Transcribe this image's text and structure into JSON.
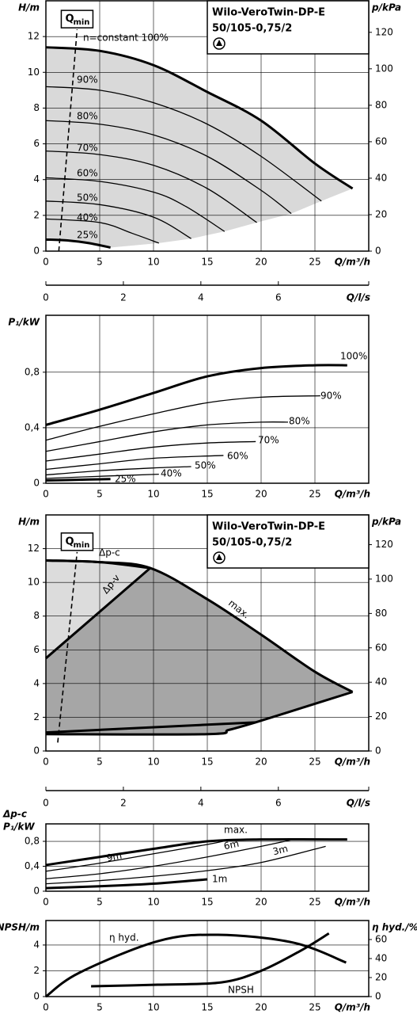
{
  "chart_data": [
    {
      "type": "line",
      "title": "Wilo-VeroTwin-DP-E",
      "subtitle": "50/105-0,75/2",
      "xlabel": "Q/m³/h",
      "ylabel": "H/m",
      "y2label": "p/kPa",
      "x2label": "Q/l/s",
      "xlim": [
        0,
        30
      ],
      "xticks": [
        0,
        5,
        10,
        15,
        20,
        25
      ],
      "ylim": [
        0,
        14
      ],
      "yticks": [
        0,
        2,
        4,
        6,
        8,
        10,
        12
      ],
      "y2lim": [
        0,
        137.3
      ],
      "y2ticks": [
        0,
        20,
        40,
        60,
        80,
        100,
        120
      ],
      "x2lim": [
        0,
        8.333
      ],
      "x2ticks": [
        0,
        2,
        4,
        6
      ],
      "grid": true,
      "fill": "#d9d9d9",
      "qmin_label": "Q",
      "qmin_sub": "min",
      "qmin_line": {
        "x": [
          1.2,
          2.9
        ],
        "values": [
          0,
          12.4
        ]
      },
      "series": [
        {
          "name": "n=constant 100%",
          "color": "#000000",
          "linewidth": 3,
          "x": [
            0,
            5,
            10,
            15,
            20,
            25,
            28.5
          ],
          "values": [
            11.4,
            11.2,
            10.4,
            8.9,
            7.3,
            4.9,
            3.5
          ]
        },
        {
          "name": "90%",
          "color": "#000000",
          "linewidth": 1.3,
          "x": [
            0,
            5,
            10,
            15,
            20,
            25.6
          ],
          "values": [
            9.2,
            9.0,
            8.3,
            7.1,
            5.3,
            2.8
          ]
        },
        {
          "name": "80%",
          "color": "#000000",
          "linewidth": 1.3,
          "x": [
            0,
            5,
            10,
            15,
            20,
            22.8
          ],
          "values": [
            7.3,
            7.1,
            6.5,
            5.3,
            3.4,
            2.1
          ]
        },
        {
          "name": "70%",
          "color": "#000000",
          "linewidth": 1.3,
          "x": [
            0,
            5,
            10,
            15,
            19.6
          ],
          "values": [
            5.6,
            5.4,
            4.8,
            3.5,
            1.6
          ]
        },
        {
          "name": "60%",
          "color": "#000000",
          "linewidth": 1.3,
          "x": [
            0,
            5,
            10,
            13,
            16.6
          ],
          "values": [
            4.1,
            3.9,
            3.3,
            2.5,
            1.1
          ]
        },
        {
          "name": "50%",
          "color": "#000000",
          "linewidth": 1.3,
          "x": [
            0,
            5,
            10,
            13.5
          ],
          "values": [
            2.8,
            2.6,
            1.9,
            0.7
          ]
        },
        {
          "name": "40%",
          "color": "#000000",
          "linewidth": 1.3,
          "x": [
            0,
            5,
            8,
            10.5
          ],
          "values": [
            1.8,
            1.6,
            1.0,
            0.45
          ]
        },
        {
          "name": "25%",
          "color": "#000000",
          "linewidth": 3,
          "x": [
            0,
            2,
            4,
            6
          ],
          "values": [
            0.65,
            0.6,
            0.45,
            0.2
          ]
        }
      ]
    },
    {
      "type": "line",
      "xlabel": "Q/m³/h",
      "ylabel": "P₁/kW",
      "xlim": [
        0,
        30
      ],
      "xticks": [
        0,
        5,
        10,
        15,
        20,
        25
      ],
      "ylim": [
        0,
        1.21
      ],
      "yticks": [
        0,
        {
          "value": 0.4,
          "label": "0,4"
        },
        {
          "value": 0.8,
          "label": "0,8"
        }
      ],
      "grid": true,
      "series": [
        {
          "name": "100%",
          "color": "#000000",
          "linewidth": 3,
          "x": [
            0,
            5,
            10,
            15,
            20,
            25,
            28
          ],
          "values": [
            0.42,
            0.53,
            0.65,
            0.77,
            0.83,
            0.85,
            0.85
          ]
        },
        {
          "name": "90%",
          "color": "#000000",
          "linewidth": 1.3,
          "x": [
            0,
            5,
            10,
            15,
            20,
            25.5
          ],
          "values": [
            0.31,
            0.41,
            0.5,
            0.58,
            0.62,
            0.63
          ]
        },
        {
          "name": "80%",
          "color": "#000000",
          "linewidth": 1.3,
          "x": [
            0,
            5,
            10,
            15,
            20,
            22.5
          ],
          "values": [
            0.23,
            0.3,
            0.37,
            0.42,
            0.44,
            0.44
          ]
        },
        {
          "name": "70%",
          "color": "#000000",
          "linewidth": 1.3,
          "x": [
            0,
            5,
            10,
            15,
            19.5
          ],
          "values": [
            0.16,
            0.21,
            0.26,
            0.29,
            0.3
          ]
        },
        {
          "name": "60%",
          "color": "#000000",
          "linewidth": 1.3,
          "x": [
            0,
            5,
            10,
            16.5
          ],
          "values": [
            0.1,
            0.14,
            0.18,
            0.2
          ]
        },
        {
          "name": "50%",
          "color": "#000000",
          "linewidth": 1.3,
          "x": [
            0,
            5,
            10,
            13.5
          ],
          "values": [
            0.06,
            0.09,
            0.11,
            0.12
          ]
        },
        {
          "name": "40%",
          "color": "#000000",
          "linewidth": 1.3,
          "x": [
            0,
            5,
            10.5
          ],
          "values": [
            0.035,
            0.05,
            0.065
          ]
        },
        {
          "name": "25%",
          "color": "#000000",
          "linewidth": 3,
          "x": [
            0,
            3,
            6
          ],
          "values": [
            0.02,
            0.025,
            0.03
          ]
        }
      ]
    },
    {
      "type": "line",
      "title": "Wilo-VeroTwin-DP-E",
      "subtitle": "50/105-0,75/2",
      "xlabel": "Q/m³/h",
      "ylabel": "H/m",
      "y2label": "p/kPa",
      "x2label": "Q/l/s",
      "xlim": [
        0,
        30
      ],
      "xticks": [
        0,
        5,
        10,
        15,
        20,
        25
      ],
      "ylim": [
        0,
        14
      ],
      "yticks": [
        0,
        2,
        4,
        6,
        8,
        10,
        12
      ],
      "y2lim": [
        0,
        137.3
      ],
      "y2ticks": [
        0,
        20,
        40,
        60,
        80,
        100,
        120
      ],
      "x2lim": [
        0,
        8.333
      ],
      "x2ticks": [
        0,
        2,
        4,
        6
      ],
      "grid": true,
      "fill": "#dcdcdc",
      "fill2": "#a6a6a6",
      "qmin_label": "Q",
      "qmin_sub": "min",
      "qmin_line": {
        "x": [
          1.1,
          2.9
        ],
        "values": [
          0.5,
          11.8
        ]
      },
      "series": [
        {
          "name": "max.",
          "color": "#000000",
          "linewidth": 3,
          "x": [
            0,
            5,
            9.7,
            15,
            20,
            25,
            28.5
          ],
          "values": [
            11.3,
            11.2,
            10.85,
            9.0,
            6.9,
            4.7,
            3.5
          ]
        },
        {
          "name": "Δp-c",
          "color": "#000000",
          "linewidth": 3,
          "x": [
            0,
            5,
            9.7
          ],
          "values": [
            11.3,
            11.2,
            10.85
          ]
        },
        {
          "name": "Δp-v",
          "color": "#000000",
          "linewidth": 3,
          "x": [
            0,
            9.7
          ],
          "values": [
            5.5,
            10.85
          ]
        },
        {
          "color": "#000000",
          "linewidth": 3,
          "x": [
            0,
            15,
            17,
            19.5,
            24,
            28.5
          ],
          "values": [
            1.0,
            1.0,
            1.25,
            1.7,
            2.6,
            3.5
          ]
        },
        {
          "color": "#000000",
          "linewidth": 3,
          "x": [
            0,
            19.5
          ],
          "values": [
            1.1,
            1.7
          ]
        }
      ]
    },
    {
      "type": "line",
      "xlabel": "Q/m³/h",
      "ylabel_top": "Δp-c",
      "ylabel": "P₁/kW",
      "xlim": [
        0,
        30
      ],
      "xticks": [
        0,
        5,
        10,
        15,
        20,
        25
      ],
      "ylim": [
        0,
        1.08
      ],
      "yticks": [
        0,
        {
          "value": 0.4,
          "label": "0,4"
        },
        {
          "value": 0.8,
          "label": "0,8"
        }
      ],
      "grid": true,
      "series": [
        {
          "name": "max.",
          "color": "#000000",
          "linewidth": 3,
          "x": [
            0,
            5,
            10,
            15,
            20,
            28
          ],
          "values": [
            0.42,
            0.55,
            0.68,
            0.8,
            0.83,
            0.83
          ]
        },
        {
          "name": "9m",
          "color": "#000000",
          "linewidth": 1.3,
          "x": [
            0,
            5,
            10,
            15,
            17
          ],
          "values": [
            0.32,
            0.45,
            0.6,
            0.75,
            0.82
          ]
        },
        {
          "name": "6m",
          "color": "#000000",
          "linewidth": 1.3,
          "x": [
            0,
            5,
            10,
            15,
            20,
            23
          ],
          "values": [
            0.2,
            0.28,
            0.4,
            0.55,
            0.72,
            0.83
          ]
        },
        {
          "name": "3m",
          "color": "#000000",
          "linewidth": 1.3,
          "x": [
            0,
            5,
            10,
            15,
            20,
            26
          ],
          "values": [
            0.12,
            0.17,
            0.24,
            0.33,
            0.46,
            0.72
          ]
        },
        {
          "name": "1m",
          "color": "#000000",
          "linewidth": 3,
          "x": [
            0,
            5,
            10,
            15
          ],
          "values": [
            0.05,
            0.08,
            0.12,
            0.19
          ]
        }
      ]
    },
    {
      "type": "line",
      "xlabel": "Q/m³/h",
      "ylabel": "NPSH/m",
      "y2label": "η hyd./%",
      "xlim": [
        0,
        30
      ],
      "xticks": [
        0,
        5,
        10,
        15,
        20,
        25
      ],
      "ylim": [
        0,
        5.9
      ],
      "yticks": [
        0,
        2,
        4
      ],
      "y2lim": [
        0,
        80
      ],
      "y2ticks": [
        0,
        20,
        40,
        60
      ],
      "grid": true,
      "series": [
        {
          "name": "η hyd.",
          "axis": "y2",
          "color": "#000000",
          "linewidth": 3,
          "x": [
            0,
            3.1,
            10.4,
            16,
            23,
            27.9
          ],
          "values": [
            0,
            25,
            58.3,
            65,
            56.7,
            35.8
          ]
        },
        {
          "name": "NPSH",
          "color": "#000000",
          "linewidth": 3,
          "x": [
            4.2,
            10.4,
            16.3,
            20,
            23.7,
            26.3
          ],
          "values": [
            0.8,
            0.92,
            1.1,
            2.0,
            3.57,
            4.9
          ]
        }
      ]
    }
  ]
}
